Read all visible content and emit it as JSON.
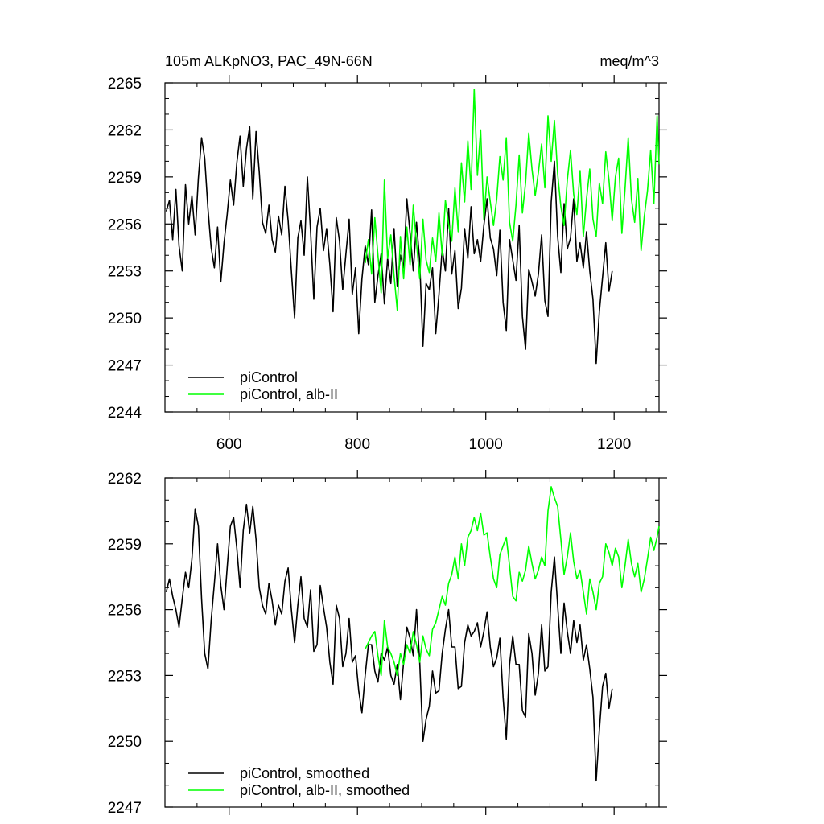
{
  "chart_data": [
    {
      "type": "line",
      "title_left": "105m ALKpNO3, PAC_49N-66N",
      "title_right": "meq/m^3",
      "xlim": [
        500,
        1270
      ],
      "ylim": [
        2244,
        2265
      ],
      "x_ticks": [
        600,
        800,
        1000,
        1200
      ],
      "x_tick_labels": [
        "600",
        "800",
        "1000",
        "1200"
      ],
      "y_ticks": [
        2244,
        2247,
        2250,
        2253,
        2256,
        2259,
        2262,
        2265
      ],
      "y_tick_labels": [
        "2244",
        "2247",
        "2250",
        "2253",
        "2256",
        "2259",
        "2262",
        "2265"
      ],
      "legend_position": "bottom-left",
      "series": [
        {
          "name": "piControl",
          "color": "#000000",
          "x": [
            502,
            507,
            512,
            517,
            522,
            527,
            532,
            537,
            542,
            547,
            552,
            557,
            562,
            567,
            572,
            577,
            582,
            587,
            592,
            597,
            602,
            607,
            612,
            617,
            622,
            627,
            632,
            637,
            642,
            647,
            652,
            657,
            662,
            667,
            672,
            677,
            682,
            687,
            692,
            697,
            702,
            707,
            712,
            717,
            722,
            727,
            732,
            737,
            742,
            747,
            752,
            757,
            762,
            767,
            772,
            777,
            782,
            787,
            792,
            797,
            802,
            807,
            812,
            817,
            822,
            827,
            832,
            837,
            842,
            847,
            852,
            857,
            862,
            867,
            872,
            877,
            882,
            887,
            892,
            897,
            902,
            907,
            912,
            917,
            922,
            927,
            932,
            937,
            942,
            947,
            952,
            957,
            962,
            967,
            972,
            977,
            982,
            987,
            992,
            997,
            1002,
            1007,
            1012,
            1017,
            1022,
            1027,
            1032,
            1037,
            1042,
            1047,
            1052,
            1057,
            1062,
            1067,
            1072,
            1077,
            1082,
            1087,
            1092,
            1097,
            1102,
            1107,
            1112,
            1117,
            1122,
            1127,
            1132,
            1137,
            1142,
            1147,
            1152,
            1157,
            1162,
            1167,
            1172,
            1177,
            1182,
            1187,
            1192,
            1197
          ],
          "values": [
            2256.8,
            2257.5,
            2255.0,
            2258.2,
            2254.6,
            2253.0,
            2258.5,
            2256.0,
            2257.8,
            2255.3,
            2258.9,
            2261.5,
            2260.2,
            2257.0,
            2254.5,
            2253.2,
            2255.8,
            2252.3,
            2254.8,
            2256.6,
            2258.8,
            2257.2,
            2259.9,
            2261.6,
            2258.4,
            2260.8,
            2262.2,
            2257.6,
            2261.9,
            2259.3,
            2256.1,
            2255.4,
            2257.2,
            2255.0,
            2254.2,
            2256.5,
            2255.3,
            2258.4,
            2256.2,
            2253.0,
            2250.0,
            2255.1,
            2256.2,
            2254.0,
            2259.0,
            2255.5,
            2251.2,
            2255.8,
            2257.0,
            2254.3,
            2255.7,
            2253.4,
            2250.4,
            2256.4,
            2254.9,
            2251.8,
            2254.1,
            2256.3,
            2251.5,
            2253.2,
            2249.0,
            2252.5,
            2254.6,
            2253.4,
            2256.9,
            2251.0,
            2252.7,
            2254.1,
            2250.9,
            2253.8,
            2252.2,
            2255.7,
            2252.0,
            2254.0,
            2253.2,
            2257.6,
            2255.4,
            2253.0,
            2256.1,
            2253.6,
            2248.2,
            2252.2,
            2251.8,
            2253.2,
            2249.0,
            2251.5,
            2254.4,
            2253.0,
            2257.0,
            2252.8,
            2254.3,
            2250.6,
            2251.9,
            2255.7,
            2253.8,
            2257.1,
            2254.1,
            2255.0,
            2253.6,
            2255.9,
            2257.6,
            2255.1,
            2254.4,
            2252.7,
            2255.6,
            2251.0,
            2249.2,
            2255.0,
            2253.7,
            2252.4,
            2255.9,
            2250.1,
            2248.0,
            2253.1,
            2252.3,
            2251.4,
            2252.8,
            2255.3,
            2251.1,
            2250.1,
            2257.4,
            2260.0,
            2255.2,
            2252.9,
            2257.3,
            2254.4,
            2255.1,
            2257.6,
            2253.6,
            2254.8,
            2253.2,
            2255.5,
            2253.0,
            2251.2,
            2247.1,
            2250.4,
            2252.6,
            2254.8,
            2251.7,
            2253.0
          ]
        },
        {
          "name": "piControl, alb-II",
          "color": "#00ff00",
          "x": [
            812,
            817,
            822,
            827,
            832,
            837,
            842,
            847,
            852,
            857,
            862,
            867,
            872,
            877,
            882,
            887,
            892,
            897,
            902,
            907,
            912,
            917,
            922,
            927,
            932,
            937,
            942,
            947,
            952,
            957,
            962,
            967,
            972,
            977,
            982,
            987,
            992,
            997,
            1002,
            1007,
            1012,
            1017,
            1022,
            1027,
            1032,
            1037,
            1042,
            1047,
            1052,
            1057,
            1062,
            1067,
            1072,
            1077,
            1082,
            1087,
            1092,
            1097,
            1102,
            1107,
            1112,
            1117,
            1122,
            1127,
            1132,
            1137,
            1142,
            1147,
            1152,
            1157,
            1162,
            1167,
            1172,
            1177,
            1182,
            1187,
            1192,
            1197,
            1202,
            1207,
            1212,
            1217,
            1222,
            1227,
            1232,
            1237,
            1242,
            1247,
            1252,
            1257,
            1262,
            1267,
            1270
          ],
          "values": [
            2253.5,
            2255.0,
            2252.8,
            2256.4,
            2254.0,
            2251.6,
            2258.8,
            2253.8,
            2255.3,
            2252.7,
            2250.5,
            2255.2,
            2252.5,
            2255.8,
            2253.4,
            2257.2,
            2254.8,
            2252.5,
            2256.3,
            2253.7,
            2252.9,
            2255.1,
            2253.6,
            2256.7,
            2254.0,
            2257.5,
            2256.0,
            2254.9,
            2258.3,
            2255.5,
            2259.9,
            2257.4,
            2261.3,
            2258.2,
            2264.6,
            2259.1,
            2262.0,
            2256.3,
            2259.0,
            2257.4,
            2255.9,
            2257.6,
            2260.3,
            2258.8,
            2261.5,
            2256.1,
            2254.9,
            2257.2,
            2260.4,
            2256.7,
            2258.6,
            2261.8,
            2259.5,
            2257.8,
            2259.3,
            2261.1,
            2258.3,
            2262.9,
            2260.0,
            2262.6,
            2259.2,
            2257.1,
            2255.9,
            2258.8,
            2260.7,
            2257.9,
            2256.6,
            2259.4,
            2255.2,
            2257.6,
            2259.5,
            2256.3,
            2255.2,
            2258.6,
            2257.3,
            2260.6,
            2258.8,
            2256.2,
            2259.0,
            2260.2,
            2255.4,
            2258.2,
            2261.5,
            2257.6,
            2256.1,
            2258.9,
            2254.3,
            2256.5,
            2258.1,
            2260.7,
            2257.3,
            2262.9,
            2259.8
          ]
        }
      ]
    },
    {
      "type": "line",
      "xlim": [
        500,
        1270
      ],
      "ylim": [
        2247,
        2262
      ],
      "x_ticks": [
        600,
        800,
        1000,
        1200
      ],
      "y_ticks": [
        2247,
        2250,
        2253,
        2256,
        2259,
        2262
      ],
      "y_tick_labels": [
        "2247",
        "2250",
        "2253",
        "2256",
        "2259",
        "2262"
      ],
      "legend_position": "bottom-left",
      "series": [
        {
          "name": "piControl, smoothed",
          "color": "#000000",
          "x": [
            502,
            507,
            512,
            517,
            522,
            527,
            532,
            537,
            542,
            547,
            552,
            557,
            562,
            567,
            572,
            577,
            582,
            587,
            592,
            597,
            602,
            607,
            612,
            617,
            622,
            627,
            632,
            637,
            642,
            647,
            652,
            657,
            662,
            667,
            672,
            677,
            682,
            687,
            692,
            697,
            702,
            707,
            712,
            717,
            722,
            727,
            732,
            737,
            742,
            747,
            752,
            757,
            762,
            767,
            772,
            777,
            782,
            787,
            792,
            797,
            802,
            807,
            812,
            817,
            822,
            827,
            832,
            837,
            842,
            847,
            852,
            857,
            862,
            867,
            872,
            877,
            882,
            887,
            892,
            897,
            902,
            907,
            912,
            917,
            922,
            927,
            932,
            937,
            942,
            947,
            952,
            957,
            962,
            967,
            972,
            977,
            982,
            987,
            992,
            997,
            1002,
            1007,
            1012,
            1017,
            1022,
            1027,
            1032,
            1037,
            1042,
            1047,
            1052,
            1057,
            1062,
            1067,
            1072,
            1077,
            1082,
            1087,
            1092,
            1097,
            1102,
            1107,
            1112,
            1117,
            1122,
            1127,
            1132,
            1137,
            1142,
            1147,
            1152,
            1157,
            1162,
            1167,
            1172,
            1177,
            1182,
            1187,
            1192,
            1197
          ],
          "values": [
            2256.8,
            2257.4,
            2256.6,
            2256.0,
            2255.2,
            2256.5,
            2257.7,
            2257.0,
            2258.3,
            2260.6,
            2259.8,
            2256.5,
            2254.0,
            2253.3,
            2255.5,
            2257.2,
            2259.0,
            2257.1,
            2256.0,
            2257.9,
            2259.8,
            2260.2,
            2258.8,
            2257.0,
            2259.6,
            2260.8,
            2259.5,
            2260.7,
            2259.2,
            2257.0,
            2256.2,
            2255.8,
            2257.2,
            2256.4,
            2255.3,
            2256.2,
            2255.8,
            2257.3,
            2257.9,
            2256.0,
            2254.5,
            2256.2,
            2257.5,
            2255.6,
            2255.2,
            2256.9,
            2254.1,
            2254.4,
            2257.1,
            2256.1,
            2255.2,
            2253.6,
            2252.6,
            2256.2,
            2255.6,
            2253.4,
            2254.0,
            2255.6,
            2253.6,
            2253.9,
            2252.3,
            2251.3,
            2253.0,
            2254.4,
            2254.4,
            2253.2,
            2252.7,
            2254.0,
            2253.7,
            2254.3,
            2253.0,
            2252.6,
            2253.5,
            2251.9,
            2253.6,
            2255.2,
            2254.7,
            2253.9,
            2256.0,
            2253.6,
            2250.0,
            2251.0,
            2251.6,
            2253.2,
            2252.2,
            2252.3,
            2254.0,
            2255.1,
            2256.0,
            2254.3,
            2254.3,
            2252.4,
            2252.5,
            2254.5,
            2255.3,
            2254.8,
            2255.0,
            2255.4,
            2254.3,
            2255.0,
            2255.9,
            2254.3,
            2253.4,
            2253.8,
            2254.7,
            2252.0,
            2250.1,
            2253.5,
            2254.8,
            2253.5,
            2253.5,
            2251.4,
            2251.1,
            2254.9,
            2254.0,
            2252.1,
            2253.1,
            2255.3,
            2253.2,
            2253.4,
            2256.8,
            2258.4,
            2256.2,
            2254.0,
            2256.3,
            2255.0,
            2254.0,
            2255.5,
            2254.5,
            2255.3,
            2253.7,
            2254.4,
            2253.3,
            2252.0,
            2248.2,
            2250.5,
            2252.5,
            2253.1,
            2251.5,
            2252.4
          ]
        },
        {
          "name": "piControl, alb-II, smoothed",
          "color": "#00ff00",
          "x": [
            812,
            817,
            822,
            827,
            832,
            837,
            842,
            847,
            852,
            857,
            862,
            867,
            872,
            877,
            882,
            887,
            892,
            897,
            902,
            907,
            912,
            917,
            922,
            927,
            932,
            937,
            942,
            947,
            952,
            957,
            962,
            967,
            972,
            977,
            982,
            987,
            992,
            997,
            1002,
            1007,
            1012,
            1017,
            1022,
            1027,
            1032,
            1037,
            1042,
            1047,
            1052,
            1057,
            1062,
            1067,
            1072,
            1077,
            1082,
            1087,
            1092,
            1097,
            1102,
            1107,
            1112,
            1117,
            1122,
            1127,
            1132,
            1137,
            1142,
            1147,
            1152,
            1157,
            1162,
            1167,
            1172,
            1177,
            1182,
            1187,
            1192,
            1197,
            1202,
            1207,
            1212,
            1217,
            1222,
            1227,
            1232,
            1237,
            1242,
            1247,
            1252,
            1257,
            1262,
            1267,
            1270
          ],
          "values": [
            2254.2,
            2254.5,
            2254.8,
            2255.0,
            2253.9,
            2253.0,
            2255.5,
            2254.3,
            2254.0,
            2253.6,
            2253.0,
            2254.0,
            2253.5,
            2254.4,
            2254.0,
            2255.0,
            2254.4,
            2253.6,
            2254.8,
            2254.2,
            2253.9,
            2255.1,
            2255.4,
            2256.0,
            2256.6,
            2256.2,
            2257.2,
            2257.6,
            2258.4,
            2257.4,
            2259.0,
            2258.0,
            2259.3,
            2259.6,
            2260.2,
            2259.6,
            2260.4,
            2259.4,
            2259.5,
            2258.4,
            2257.4,
            2257.0,
            2258.5,
            2258.9,
            2259.3,
            2258.0,
            2256.6,
            2256.4,
            2257.7,
            2257.3,
            2257.8,
            2258.9,
            2258.1,
            2257.4,
            2257.8,
            2258.4,
            2258.0,
            2260.5,
            2261.6,
            2261.1,
            2260.7,
            2259.2,
            2257.6,
            2258.4,
            2259.5,
            2258.2,
            2257.4,
            2257.8,
            2256.8,
            2255.8,
            2257.4,
            2256.8,
            2256.0,
            2257.2,
            2257.5,
            2259.0,
            2258.6,
            2258.0,
            2258.8,
            2258.4,
            2257.0,
            2258.0,
            2259.2,
            2258.1,
            2257.5,
            2258.1,
            2256.8,
            2257.4,
            2258.3,
            2259.3,
            2258.7,
            2259.3,
            2259.8
          ]
        }
      ]
    }
  ]
}
